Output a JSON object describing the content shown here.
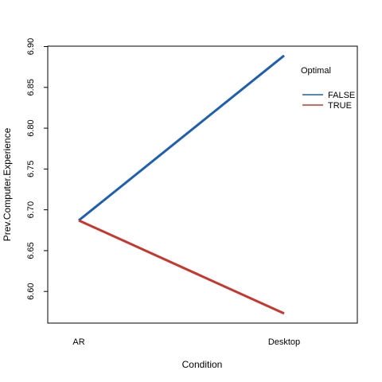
{
  "chart_data": {
    "type": "line",
    "title": "",
    "xlabel": "Condition",
    "ylabel": "Prev.Computer.Experience",
    "categories": [
      "AR",
      "Desktop"
    ],
    "yticks": [
      "6.60",
      "6.65",
      "6.70",
      "6.75",
      "6.80",
      "6.85",
      "6.90"
    ],
    "ylim": [
      6.5612,
      6.9005
    ],
    "legend": {
      "title": "Optimal",
      "placement": "top-right"
    },
    "series": [
      {
        "name": "FALSE",
        "values": [
          6.687,
          6.889
        ],
        "color": "#1f5fb0"
      },
      {
        "name": "TRUE",
        "values": [
          6.687,
          6.573
        ],
        "color": "#c8372d"
      }
    ],
    "grid": false
  }
}
